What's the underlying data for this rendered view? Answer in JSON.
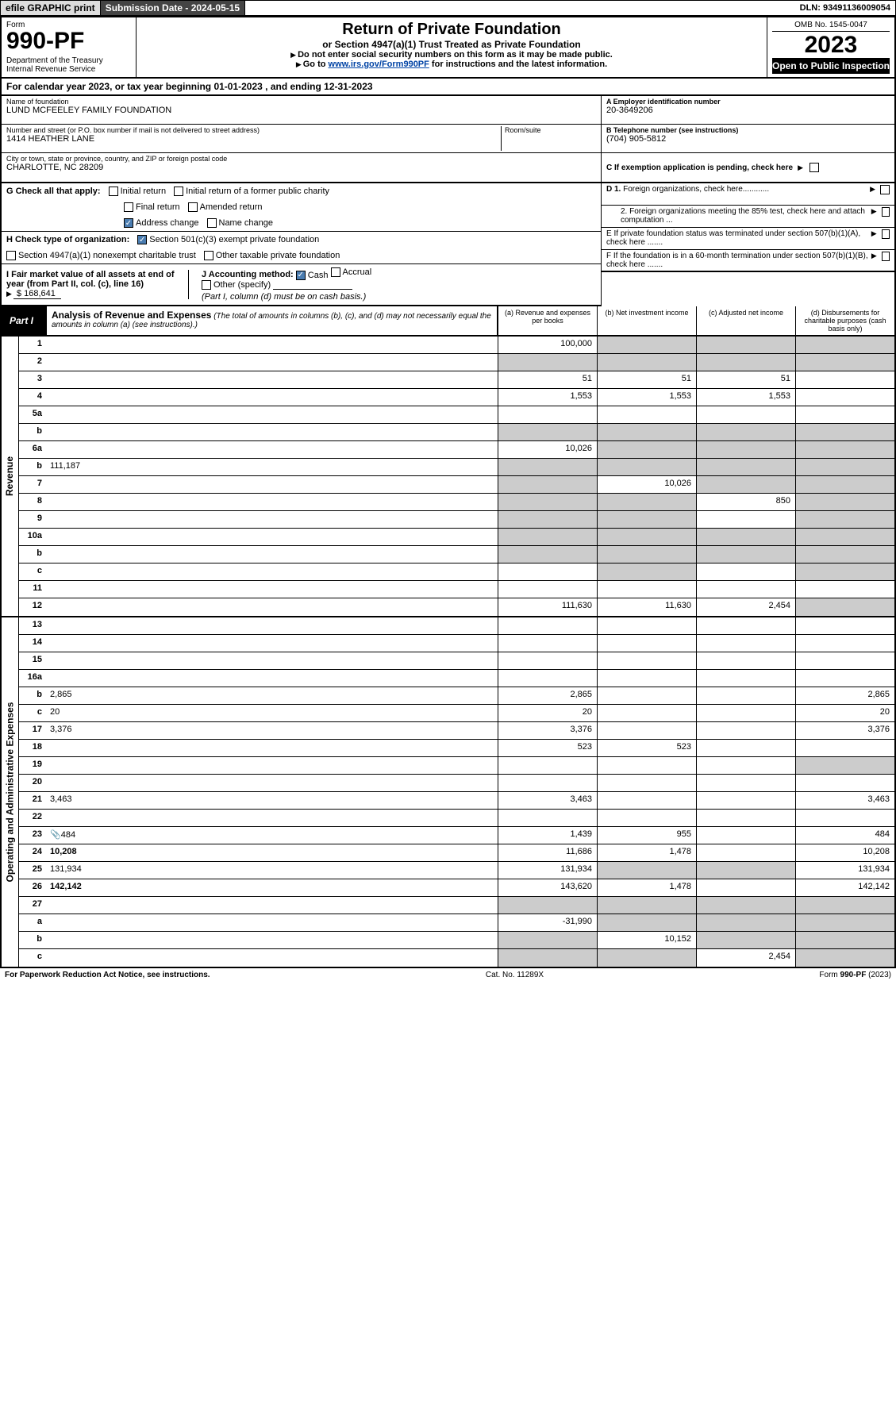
{
  "hdr": {
    "efile": "efile GRAPHIC print",
    "subdate_lbl": "Submission Date - 2024-05-15",
    "dln": "DLN: 93491136009054"
  },
  "form": {
    "form_word": "Form",
    "number": "990-PF",
    "dept": "Department of the Treasury",
    "irs": "Internal Revenue Service",
    "title": "Return of Private Foundation",
    "subtitle": "or Section 4947(a)(1) Trust Treated as Private Foundation",
    "note1": "Do not enter social security numbers on this form as it may be made public.",
    "note2": "Go to ",
    "note2_link": "www.irs.gov/Form990PF",
    "note2_suffix": " for instructions and the latest information.",
    "omb": "OMB No. 1545-0047",
    "year": "2023",
    "inspect": "Open to Public Inspection"
  },
  "cal_year": "For calendar year 2023, or tax year beginning 01-01-2023                    , and ending 12-31-2023",
  "info": {
    "name_lbl": "Name of foundation",
    "name": "LUND MCFEELEY FAMILY FOUNDATION",
    "addr_lbl": "Number and street (or P.O. box number if mail is not delivered to street address)",
    "addr": "1414 HEATHER LANE",
    "room_lbl": "Room/suite",
    "city_lbl": "City or town, state or province, country, and ZIP or foreign postal code",
    "city": "CHARLOTTE, NC  28209",
    "ein_lbl": "A Employer identification number",
    "ein": "20-3649206",
    "tel_lbl": "B Telephone number (see instructions)",
    "tel": "(704) 905-5812",
    "c_lbl": "C If exemption application is pending, check here",
    "d1": "D 1. Foreign organizations, check here............",
    "d2": "2. Foreign organizations meeting the 85% test, check here and attach computation ...",
    "e_lbl": "E  If private foundation status was terminated under section 507(b)(1)(A), check here .......",
    "f_lbl": "F  If the foundation is in a 60-month termination under section 507(b)(1)(B), check here .......",
    "g_lbl": "G Check all that apply:",
    "g_initial": "Initial return",
    "g_initial_former": "Initial return of a former public charity",
    "g_final": "Final return",
    "g_amended": "Amended return",
    "g_address": "Address change",
    "g_name": "Name change",
    "h_lbl": "H Check type of organization:",
    "h_501c3": "Section 501(c)(3) exempt private foundation",
    "h_4947": "Section 4947(a)(1) nonexempt charitable trust",
    "h_other": "Other taxable private foundation",
    "i_lbl": "I Fair market value of all assets at end of year (from Part II, col. (c), line 16)",
    "i_val": "$  168,641",
    "j_lbl": "J Accounting method:",
    "j_cash": "Cash",
    "j_accrual": "Accrual",
    "j_other": "Other (specify)",
    "j_note": "(Part I, column (d) must be on cash basis.)"
  },
  "part1": {
    "label": "Part I",
    "title": "Analysis of Revenue and Expenses",
    "note": " (The total of amounts in columns (b), (c), and (d) may not necessarily equal the amounts in column (a) (see instructions).)",
    "col_a": "(a)   Revenue and expenses per books",
    "col_b": "(b)   Net investment income",
    "col_c": "(c)   Adjusted net income",
    "col_d": "(d)   Disbursements for charitable purposes (cash basis only)"
  },
  "side_rev": "Revenue",
  "side_exp": "Operating and Administrative Expenses",
  "lines": [
    {
      "n": "1",
      "d": "",
      "a": "100,000",
      "b": "",
      "c": "",
      "greyBCD": true
    },
    {
      "n": "2",
      "d": "",
      "a": "",
      "b": "",
      "c": "",
      "greyAll": true
    },
    {
      "n": "3",
      "d": "",
      "a": "51",
      "b": "51",
      "c": "51"
    },
    {
      "n": "4",
      "d": "",
      "a": "1,553",
      "b": "1,553",
      "c": "1,553"
    },
    {
      "n": "5a",
      "d": "",
      "a": "",
      "b": "",
      "c": ""
    },
    {
      "n": "b",
      "d": "",
      "a": "",
      "b": "",
      "c": "",
      "greyAll": true,
      "inlineBox": true
    },
    {
      "n": "6a",
      "d": "",
      "a": "10,026",
      "b": "",
      "c": "",
      "greyBCD": true
    },
    {
      "n": "b",
      "d": "",
      "a": "",
      "b": "",
      "c": "",
      "greyAll": true,
      "inlineVal": "111,187"
    },
    {
      "n": "7",
      "d": "",
      "a": "",
      "b": "10,026",
      "c": "",
      "greyA": true,
      "greyCD": true
    },
    {
      "n": "8",
      "d": "",
      "a": "",
      "b": "",
      "c": "850",
      "greyAB": true,
      "greyD": true
    },
    {
      "n": "9",
      "d": "",
      "a": "",
      "b": "",
      "c": "",
      "greyAB": true,
      "greyD": true
    },
    {
      "n": "10a",
      "d": "",
      "a": "",
      "b": "",
      "c": "",
      "greyAll": true,
      "inlineBox": true
    },
    {
      "n": "b",
      "d": "",
      "a": "",
      "b": "",
      "c": "",
      "greyAll": true,
      "inlineBox": true
    },
    {
      "n": "c",
      "d": "",
      "a": "",
      "b": "",
      "c": "",
      "greyBD": true
    },
    {
      "n": "11",
      "d": "",
      "a": "",
      "b": "",
      "c": ""
    },
    {
      "n": "12",
      "d": "",
      "a": "111,630",
      "b": "11,630",
      "c": "2,454",
      "bold": true,
      "greyD": true
    },
    {
      "n": "13",
      "d": "",
      "a": "",
      "b": "",
      "c": ""
    },
    {
      "n": "14",
      "d": "",
      "a": "",
      "b": "",
      "c": ""
    },
    {
      "n": "15",
      "d": "",
      "a": "",
      "b": "",
      "c": ""
    },
    {
      "n": "16a",
      "d": "",
      "a": "",
      "b": "",
      "c": ""
    },
    {
      "n": "b",
      "d": "2,865",
      "a": "2,865",
      "b": "",
      "c": ""
    },
    {
      "n": "c",
      "d": "20",
      "a": "20",
      "b": "",
      "c": ""
    },
    {
      "n": "17",
      "d": "3,376",
      "a": "3,376",
      "b": "",
      "c": ""
    },
    {
      "n": "18",
      "d": "",
      "a": "523",
      "b": "523",
      "c": ""
    },
    {
      "n": "19",
      "d": "",
      "a": "",
      "b": "",
      "c": "",
      "greyD": true
    },
    {
      "n": "20",
      "d": "",
      "a": "",
      "b": "",
      "c": ""
    },
    {
      "n": "21",
      "d": "3,463",
      "a": "3,463",
      "b": "",
      "c": ""
    },
    {
      "n": "22",
      "d": "",
      "a": "",
      "b": "",
      "c": ""
    },
    {
      "n": "23",
      "d": "484",
      "a": "1,439",
      "b": "955",
      "c": "",
      "icon": true
    },
    {
      "n": "24",
      "d": "10,208",
      "a": "11,686",
      "b": "1,478",
      "c": "",
      "bold": true
    },
    {
      "n": "25",
      "d": "131,934",
      "a": "131,934",
      "b": "",
      "c": "",
      "greyBC": true
    },
    {
      "n": "26",
      "d": "142,142",
      "a": "143,620",
      "b": "1,478",
      "c": "",
      "bold": true
    },
    {
      "n": "27",
      "d": "",
      "a": "",
      "b": "",
      "c": "",
      "greyAll": true
    },
    {
      "n": "a",
      "d": "",
      "a": "-31,990",
      "b": "",
      "c": "",
      "bold": true,
      "greyBCD": true
    },
    {
      "n": "b",
      "d": "",
      "a": "",
      "b": "10,152",
      "c": "",
      "bold": true,
      "greyA": true,
      "greyCD": true
    },
    {
      "n": "c",
      "d": "",
      "a": "",
      "b": "",
      "c": "2,454",
      "bold": true,
      "greyAB": true,
      "greyD": true
    }
  ],
  "footer": {
    "left": "For Paperwork Reduction Act Notice, see instructions.",
    "mid": "Cat. No. 11289X",
    "right": "Form 990-PF (2023)"
  }
}
